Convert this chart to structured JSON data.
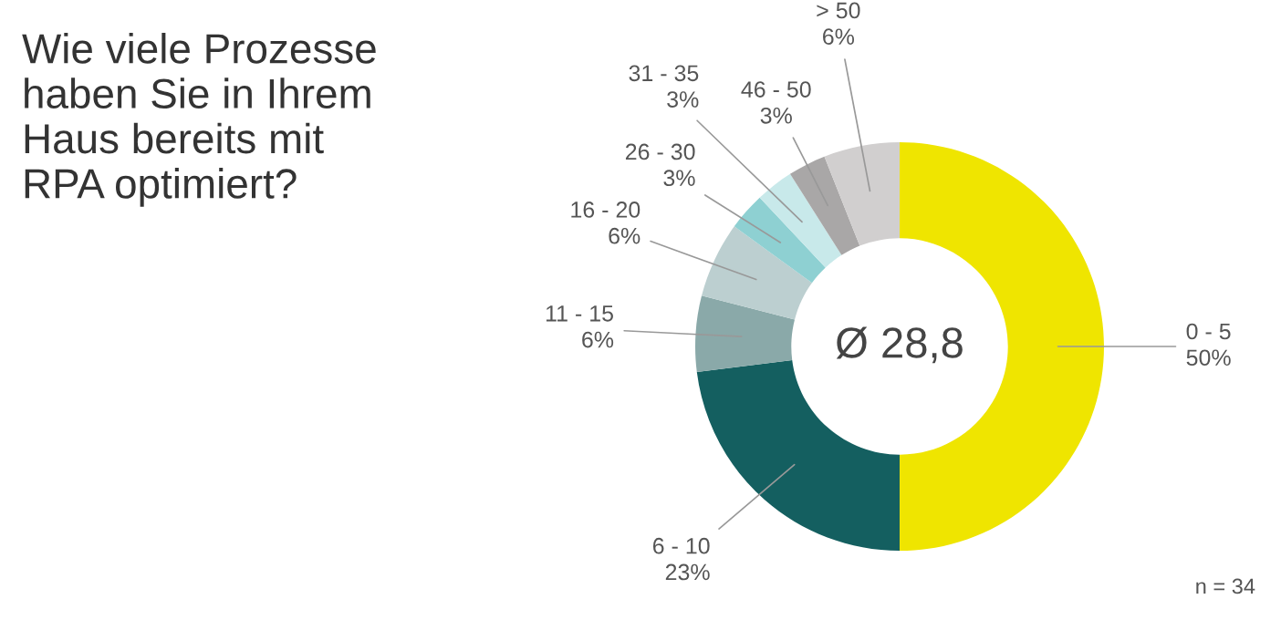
{
  "chart_data": {
    "type": "donut",
    "title": "Wie viele Prozesse\nhaben Sie in Ihrem\nHaus bereits mit\nRPA optimiert?",
    "categories": [
      "0 - 5",
      "6 - 10",
      "11 - 15",
      "16 - 20",
      "26 - 30",
      "31 - 35",
      "46 - 50",
      "> 50"
    ],
    "values": [
      50,
      23,
      6,
      6,
      3,
      3,
      3,
      6
    ],
    "value_labels": [
      "50%",
      "23%",
      "6%",
      "6%",
      "3%",
      "3%",
      "3%",
      "6%"
    ],
    "colors": [
      "#efe500",
      "#145f60",
      "#8aa9a9",
      "#bccfd0",
      "#8ed0d2",
      "#c8e9ea",
      "#a9a7a7",
      "#d1cfcf"
    ],
    "annotations": [
      "Ø 28,8",
      "n = 34"
    ],
    "legend": false
  }
}
